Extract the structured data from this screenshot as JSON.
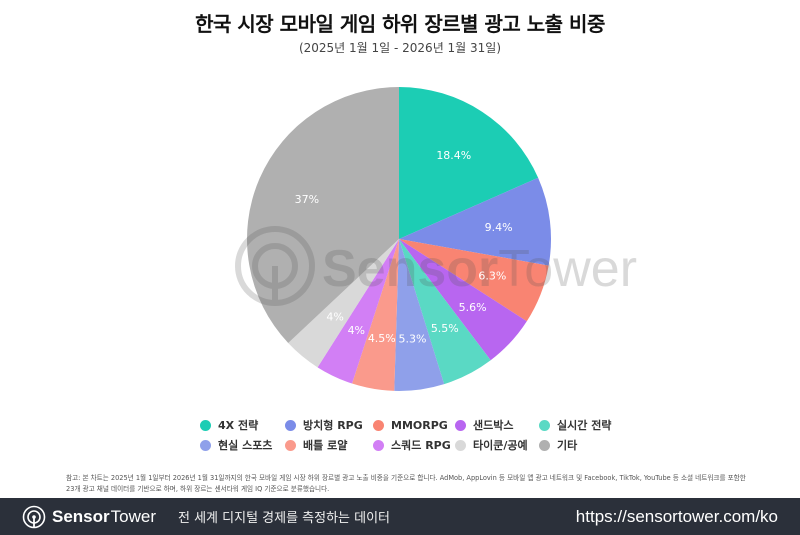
{
  "header": {
    "title": "한국 시장 모바일 게임 하위 장르별 광고 노출 비중",
    "subtitle": "(2025년 1월 1일 - 2026년 1월 31일)"
  },
  "watermark": {
    "text_bold": "Sensor",
    "text_light": "Tower"
  },
  "chart_data": {
    "type": "pie",
    "title": "한국 시장 모바일 게임 하위 장르별 광고 노출 비중",
    "subtitle": "(2025년 1월 1일 - 2026년 1월 31일)",
    "start_angle": "12 o'clock, clockwise",
    "legend_position": "bottom",
    "categories": [
      "4X 전략",
      "방치형 RPG",
      "MMORPG",
      "샌드박스",
      "실시간 전략",
      "현실 스포츠",
      "배틀 로얄",
      "스쿼드 RPG",
      "타이쿤/공예",
      "기타"
    ],
    "values": [
      18.4,
      9.4,
      6.3,
      5.6,
      5.5,
      5.3,
      4.5,
      4.0,
      4.0,
      37.0
    ],
    "labels": [
      "18.4%",
      "9.4%",
      "6.3%",
      "5.6%",
      "5.5%",
      "5.3%",
      "4.5%",
      "4%",
      "4%",
      "37%"
    ],
    "colors": [
      "#1ccdb4",
      "#7b8ce8",
      "#f98472",
      "#b866f0",
      "#5ad9c4",
      "#8fa0ea",
      "#fa9a8c",
      "#d27ff5",
      "#d9d9d9",
      "#b0b0b0"
    ]
  },
  "legend": {
    "items": [
      {
        "label": "4X 전략",
        "color": "#1ccdb4"
      },
      {
        "label": "방치형 RPG",
        "color": "#7b8ce8"
      },
      {
        "label": "MMORPG",
        "color": "#f98472"
      },
      {
        "label": "샌드박스",
        "color": "#b866f0"
      },
      {
        "label": "실시간 전략",
        "color": "#5ad9c4"
      },
      {
        "label": "현실 스포츠",
        "color": "#8fa0ea"
      },
      {
        "label": "배틀 로얄",
        "color": "#fa9a8c"
      },
      {
        "label": "스쿼드 RPG",
        "color": "#d27ff5"
      },
      {
        "label": "타이쿤/공예",
        "color": "#d9d9d9"
      },
      {
        "label": "기타",
        "color": "#b0b0b0"
      }
    ]
  },
  "note": {
    "line1": "참고: 본 차트는 2025년 1월 1일부터 2026년 1월 31일까지의 한국 모바일 게임 시장 하위 장르별 광고 노출 비중을 기준으로 합니다. AdMob, AppLovin 등 모바일 앱 광고 네트워크 및 Facebook, TikTok, YouTube 등 소셜 네트워크를 포함한",
    "line2": "23개 광고 채널 데이터를 기반으로 하며, 하위 장르는 센서타워 게임 IQ 기준으로 분류했습니다."
  },
  "footer": {
    "logo_bold": "Sensor",
    "logo_light": "Tower",
    "tagline": "전 세계 디지털 경제를 측정하는 데이터",
    "url": "https://sensortower.com/ko",
    "background": "#2b303a"
  }
}
